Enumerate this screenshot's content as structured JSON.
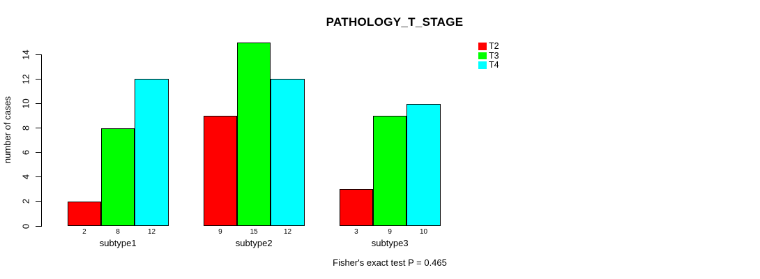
{
  "chart_data": {
    "type": "bar",
    "title": "PATHOLOGY_T_STAGE",
    "xlabel": "",
    "ylabel": "number of cases",
    "categories": [
      "subtype1",
      "subtype2",
      "subtype3"
    ],
    "series": [
      {
        "name": "T2",
        "color": "#ff0000",
        "values": [
          2,
          9,
          3
        ]
      },
      {
        "name": "T3",
        "color": "#00ff00",
        "values": [
          8,
          15,
          9
        ]
      },
      {
        "name": "T4",
        "color": "#00ffff",
        "values": [
          12,
          12,
          10
        ]
      }
    ],
    "bar_value_labels": [
      [
        "2",
        "8",
        "12"
      ],
      [
        "9",
        "15",
        "12"
      ],
      [
        "3",
        "9",
        "10"
      ]
    ],
    "yticks": [
      0,
      2,
      4,
      6,
      8,
      10,
      12,
      14
    ],
    "ylim": [
      0,
      15
    ],
    "grid": false,
    "legend_position": "right-outside-top",
    "annotation": "Fisher's exact test P = 0.465",
    "axis_color": "#000000",
    "bar_border_color": "#000000"
  }
}
